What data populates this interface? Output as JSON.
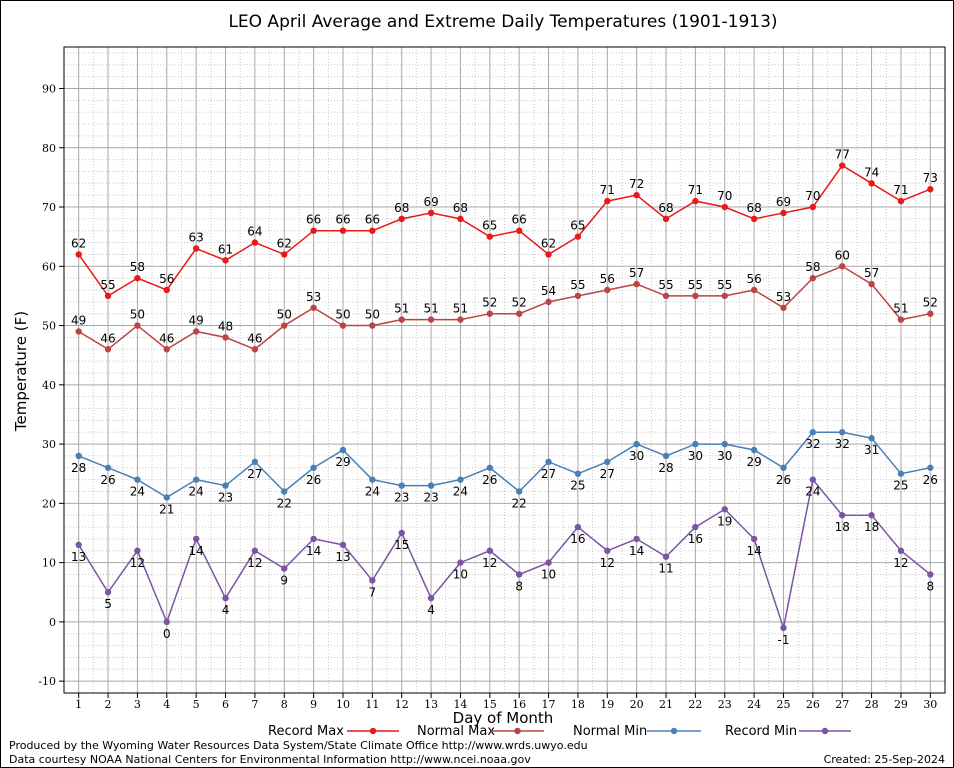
{
  "chart_data": {
    "type": "line",
    "title": "LEO April Average and Extreme Daily Temperatures (1901-1913)",
    "xlabel": "Day of Month",
    "ylabel": "Temperature (F)",
    "x": [
      1,
      2,
      3,
      4,
      5,
      6,
      7,
      8,
      9,
      10,
      11,
      12,
      13,
      14,
      15,
      16,
      17,
      18,
      19,
      20,
      21,
      22,
      23,
      24,
      25,
      26,
      27,
      28,
      29,
      30
    ],
    "xlim": [
      0.5,
      30.5
    ],
    "ylim": [
      -12,
      97
    ],
    "yticks": [
      -10,
      0,
      10,
      20,
      30,
      40,
      50,
      60,
      70,
      80,
      90
    ],
    "grid": true,
    "legend_position": "bottom",
    "series": [
      {
        "name": "Record Max",
        "color": "#e8191b",
        "label_position": "above",
        "values": [
          62,
          55,
          58,
          56,
          63,
          61,
          64,
          62,
          66,
          66,
          66,
          68,
          69,
          68,
          65,
          66,
          62,
          65,
          71,
          72,
          68,
          71,
          70,
          68,
          69,
          70,
          77,
          74,
          71,
          73
        ]
      },
      {
        "name": "Normal Max",
        "color": "#bb4444",
        "label_position": "above",
        "values": [
          49,
          46,
          50,
          46,
          49,
          48,
          46,
          50,
          53,
          50,
          50,
          51,
          51,
          51,
          52,
          52,
          54,
          55,
          56,
          57,
          55,
          55,
          55,
          56,
          53,
          58,
          60,
          57,
          51,
          52
        ]
      },
      {
        "name": "Normal Min",
        "color": "#4a7fb5",
        "label_position": "below",
        "values": [
          28,
          26,
          24,
          21,
          24,
          23,
          27,
          22,
          26,
          29,
          24,
          23,
          23,
          24,
          26,
          22,
          27,
          25,
          27,
          30,
          28,
          30,
          30,
          29,
          26,
          32,
          32,
          31,
          25,
          26
        ]
      },
      {
        "name": "Record Min",
        "color": "#7b55a3",
        "label_position": "below",
        "values": [
          13,
          5,
          12,
          0,
          14,
          4,
          12,
          9,
          14,
          13,
          7,
          15,
          4,
          10,
          12,
          8,
          10,
          16,
          12,
          14,
          11,
          16,
          19,
          14,
          -1,
          24,
          18,
          18,
          12,
          8
        ]
      }
    ]
  },
  "footer": {
    "left_line1": "Produced by the Wyoming Water Resources Data System/State Climate Office http://www.wrds.uwyo.edu",
    "left_line2": "Data courtesy NOAA National Centers for Environmental Information http://www.ncei.noaa.gov",
    "created": "Created:  25-Sep-2024"
  }
}
